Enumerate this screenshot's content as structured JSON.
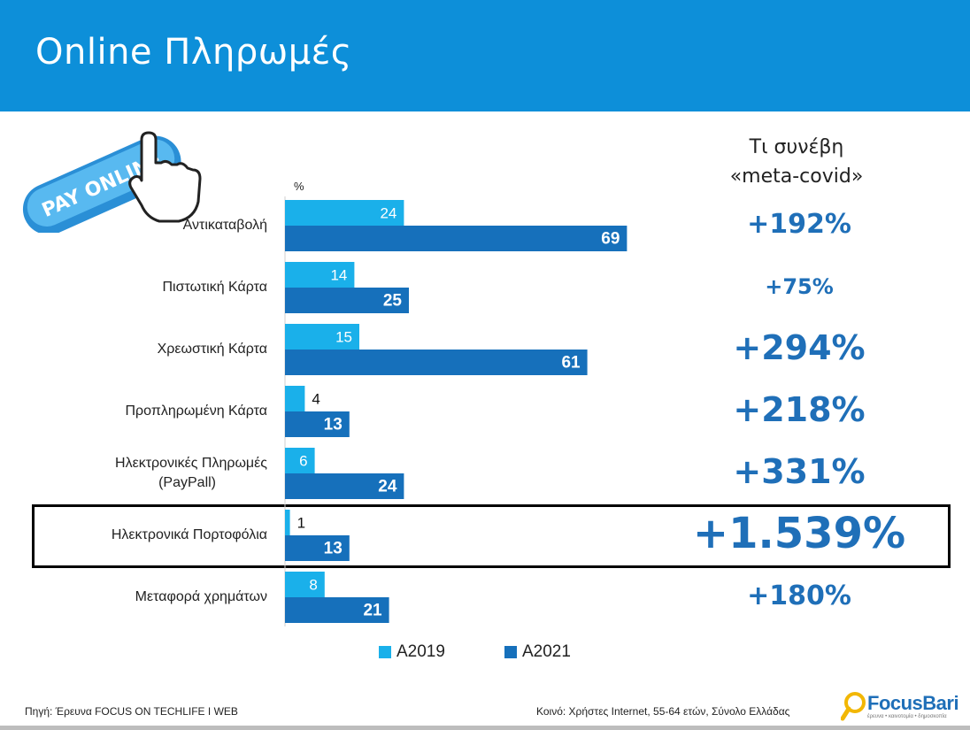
{
  "header": {
    "title": "Online Πληρωμές"
  },
  "logo": {
    "text": "PAY ONLINE"
  },
  "unit": "%",
  "meta": {
    "title_line1": "Τι συνέβη",
    "title_line2": "«meta-covid»"
  },
  "chart_data": {
    "type": "bar",
    "orientation": "horizontal",
    "categories": [
      "Αντικαταβολή",
      "Πιστωτική Κάρτα",
      "Χρεωστική Κάρτα",
      "Προπληρωμένη Κάρτα",
      "Ηλεκτρονικές Πληρωμές (PayPall)",
      "Ηλεκτρονικά Πορτοφόλια",
      "Μεταφορά χρημάτων"
    ],
    "series": [
      {
        "name": "A2019",
        "values": [
          24,
          14,
          15,
          4,
          6,
          1,
          8
        ],
        "color": "#1ab0ea"
      },
      {
        "name": "A2021",
        "values": [
          69,
          25,
          61,
          13,
          24,
          13,
          21
        ],
        "color": "#1670bb"
      }
    ],
    "xlim": [
      0,
      100
    ],
    "changes": [
      "+192%",
      "+75%",
      "+294%",
      "+218%",
      "+331%",
      "+1.539%",
      "+180%"
    ],
    "highlighted_category": "Ηλεκτρονικά Πορτοφόλια",
    "legend_position": "bottom"
  },
  "footer": {
    "source": "Πηγή: Έρευνα FOCUS ON TECHLIFE I WEB",
    "sample": "Κοινό: Χρήστες Internet, 55-64 ετών, Σύνολο Ελλάδας",
    "brand": "FocusBari",
    "brand_sub": "έρευνα • καινοτομία • δημοσκοπία"
  }
}
